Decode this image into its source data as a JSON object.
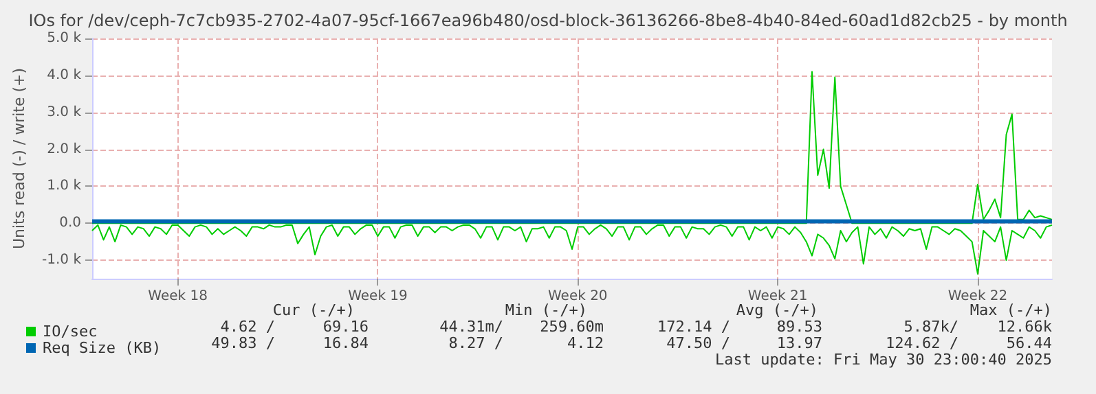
{
  "chart_data": {
    "type": "line",
    "title": "IOs for /dev/ceph-7c7cb935-2702-4a07-95cf-1667ea96b480/osd-block-36136266-8be8-4b40-84ed-60ad1d82cb25 - by month",
    "ylabel": "Units read (-) / write (+)",
    "categories": [
      null,
      null,
      null,
      null,
      null,
      null,
      null,
      null,
      null,
      null,
      null,
      null,
      null,
      null,
      null,
      "Week 18",
      null,
      null,
      null,
      null,
      null,
      null,
      null,
      null,
      null,
      null,
      null,
      null,
      null,
      null,
      null,
      null,
      null,
      null,
      null,
      null,
      null,
      null,
      null,
      null,
      null,
      null,
      null,
      null,
      null,
      null,
      null,
      null,
      null,
      null,
      "Week 19",
      null,
      null,
      null,
      null,
      null,
      null,
      null,
      null,
      null,
      null,
      null,
      null,
      null,
      null,
      null,
      null,
      null,
      null,
      null,
      null,
      null,
      null,
      null,
      null,
      null,
      null,
      null,
      null,
      null,
      null,
      null,
      null,
      null,
      null,
      "Week 20",
      null,
      null,
      null,
      null,
      null,
      null,
      null,
      null,
      null,
      null,
      null,
      null,
      null,
      null,
      null,
      null,
      null,
      null,
      null,
      null,
      null,
      null,
      null,
      null,
      null,
      null,
      null,
      null,
      null,
      null,
      null,
      null,
      null,
      null,
      "Week 21",
      null,
      null,
      null,
      null,
      null,
      null,
      null,
      null,
      null,
      null,
      null,
      null,
      null,
      null,
      null,
      null,
      null,
      null,
      null,
      null,
      null,
      null,
      null,
      null,
      null,
      null,
      null,
      null,
      null,
      null,
      null,
      null,
      null,
      null,
      "Week 22",
      null,
      null,
      null,
      null,
      null,
      null,
      null,
      null,
      null,
      null,
      null,
      null,
      null
    ],
    "ylim": [
      -1500,
      5000
    ],
    "yticks": [
      {
        "value": -1000,
        "label": "-1.0 k"
      },
      {
        "value": 0,
        "label": "0.0"
      },
      {
        "value": 1000,
        "label": "1.0 k"
      },
      {
        "value": 2000,
        "label": "2.0 k"
      },
      {
        "value": 3000,
        "label": "3.0 k"
      },
      {
        "value": 4000,
        "label": "4.0 k"
      },
      {
        "value": 5000,
        "label": "5.0 k"
      }
    ],
    "grid": true,
    "legend": "bottom left",
    "marker": "none",
    "line_style": "solid",
    "series": [
      {
        "name": "IO/sec",
        "color": "#00cc00",
        "values": [
          0,
          0,
          0,
          0,
          0,
          0,
          0,
          0,
          0,
          0,
          0,
          0,
          0,
          0,
          0,
          0,
          0,
          0,
          0,
          0,
          0,
          0,
          0,
          0,
          0,
          0,
          0,
          0,
          0,
          0,
          0,
          0,
          0,
          0,
          0,
          0,
          0,
          0,
          0,
          0,
          0,
          0,
          0,
          0,
          0,
          0,
          0,
          0,
          0,
          0,
          0,
          0,
          0,
          0,
          0,
          0,
          0,
          0,
          0,
          0,
          0,
          0,
          0,
          0,
          0,
          0,
          0,
          0,
          0,
          0,
          0,
          0,
          0,
          0,
          0,
          0,
          0,
          0,
          0,
          0,
          0,
          0,
          0,
          0,
          0,
          0,
          0,
          0,
          0,
          0,
          0,
          0,
          0,
          0,
          0,
          0,
          0,
          0,
          0,
          0,
          0,
          0,
          0,
          0,
          0,
          0,
          0,
          0,
          0,
          0,
          0,
          0,
          0,
          0,
          0,
          0,
          0,
          0,
          0,
          0,
          0,
          0,
          0,
          0,
          0,
          0,
          4100,
          1300,
          2000,
          950,
          3950,
          1000,
          500,
          0,
          0,
          0,
          0,
          0,
          0,
          0,
          0,
          0,
          0,
          0,
          0,
          0,
          0,
          0,
          0,
          0,
          0,
          0,
          0,
          0,
          0,
          1050,
          100,
          350,
          650,
          150,
          2400,
          2950,
          100,
          100,
          350,
          150,
          200,
          150,
          100
        ]
      },
      {
        "color": "#00cc00",
        "values": [
          -200,
          -50,
          -450,
          -100,
          -500,
          -50,
          -100,
          -300,
          -100,
          -150,
          -350,
          -100,
          -150,
          -300,
          -50,
          -50,
          -200,
          -350,
          -100,
          -50,
          -100,
          -300,
          -150,
          -300,
          -200,
          -100,
          -200,
          -350,
          -100,
          -100,
          -150,
          -50,
          -100,
          -100,
          -50,
          -50,
          -550,
          -300,
          -100,
          -850,
          -350,
          -100,
          -50,
          -350,
          -100,
          -100,
          -300,
          -150,
          -50,
          -50,
          -350,
          -100,
          -100,
          -400,
          -100,
          -50,
          -50,
          -350,
          -100,
          -100,
          -250,
          -100,
          -100,
          -200,
          -100,
          -50,
          -50,
          -150,
          -400,
          -100,
          -100,
          -450,
          -100,
          -100,
          -200,
          -100,
          -500,
          -150,
          -150,
          -100,
          -400,
          -100,
          -100,
          -200,
          -700,
          -100,
          -100,
          -300,
          -150,
          -50,
          -150,
          -350,
          -100,
          -100,
          -450,
          -100,
          -100,
          -300,
          -150,
          -50,
          -50,
          -350,
          -100,
          -100,
          -400,
          -100,
          -150,
          -150,
          -300,
          -100,
          -50,
          -100,
          -350,
          -100,
          -100,
          -450,
          -100,
          -200,
          -100,
          -400,
          -100,
          -150,
          -300,
          -100,
          -250,
          -500,
          -880,
          -300,
          -400,
          -600,
          -960,
          -200,
          -500,
          -250,
          -100,
          -1100,
          -100,
          -300,
          -150,
          -400,
          -100,
          -200,
          -350,
          -150,
          -200,
          -150,
          -700,
          -100,
          -100,
          -200,
          -300,
          -150,
          -200,
          -350,
          -500,
          -1370,
          -200,
          -350,
          -500,
          -100,
          -1000,
          -200,
          -300,
          -400,
          -100,
          -200,
          -400,
          -100,
          -50
        ]
      },
      {
        "name": "Req Size (KB)",
        "color": "#0066b3",
        "values": [
          50,
          50,
          50,
          50,
          50,
          50,
          50,
          50,
          50,
          50,
          50,
          50,
          50,
          50,
          50,
          50,
          50,
          50,
          50,
          50,
          50,
          50,
          50,
          50,
          50,
          50,
          50,
          50,
          50,
          50,
          50,
          50,
          50,
          50,
          50,
          50,
          50,
          50,
          50,
          50,
          50,
          50,
          50,
          50,
          50,
          50,
          50,
          50,
          50,
          50,
          50,
          50,
          50,
          50,
          50,
          50,
          50,
          50,
          50,
          50,
          50,
          50,
          50,
          50,
          50,
          50,
          50,
          50,
          50,
          50,
          50,
          50,
          50,
          50,
          50,
          50,
          50,
          50,
          50,
          50,
          50,
          50,
          50,
          50,
          50,
          50,
          50,
          50,
          50,
          50,
          50,
          50,
          50,
          50,
          50,
          50,
          50,
          50,
          50,
          50,
          50,
          50,
          50,
          50,
          50,
          50,
          50,
          50,
          50,
          50,
          50,
          50,
          50,
          50,
          50,
          50,
          50,
          50,
          50,
          50,
          50,
          50,
          50,
          50,
          50,
          50,
          50,
          50,
          50,
          50,
          50,
          50,
          50,
          50,
          50,
          50,
          50,
          50,
          50,
          50,
          50,
          50,
          50,
          50,
          50,
          50,
          50,
          50,
          50,
          50,
          50,
          50,
          50,
          50,
          50,
          50,
          50,
          50,
          50,
          50,
          50,
          50,
          50,
          50,
          50,
          50,
          50,
          50,
          50
        ]
      }
    ],
    "annotations": [
      "Cur (-/+)",
      "Min (-/+)",
      "Avg (-/+)",
      "Max (-/+)",
      "4.62 /",
      "69.16",
      "44.31m/",
      "259.60m",
      "172.14 /",
      "89.53",
      "5.87k/",
      "12.66k",
      "49.83 /",
      "16.84",
      "8.27 /",
      "4.12",
      "47.50 /",
      "13.97",
      "124.62 /",
      "56.44",
      "Last update: Fri May 30 23:00:40 2025"
    ]
  }
}
